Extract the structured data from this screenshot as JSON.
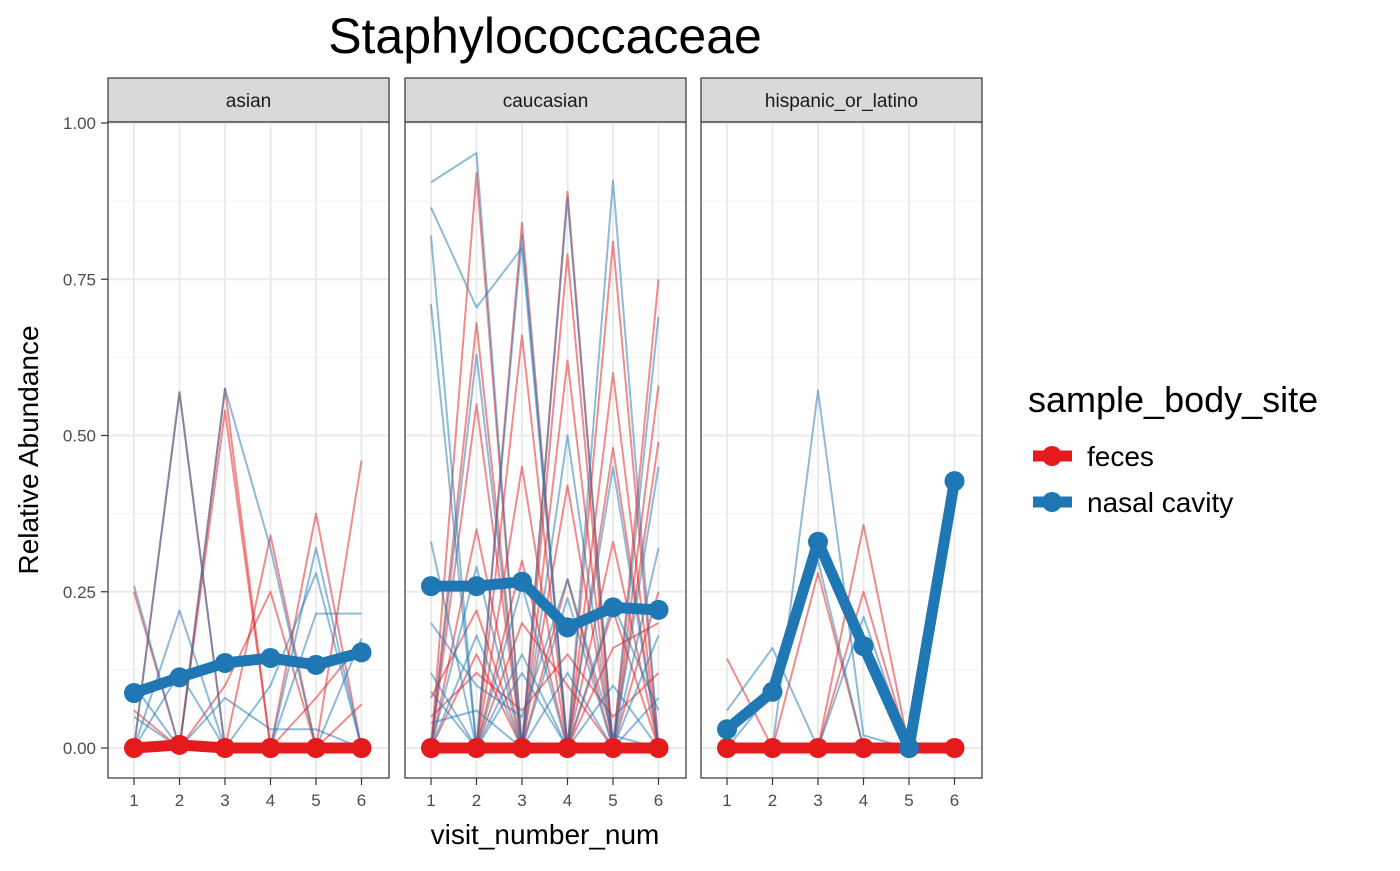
{
  "chart_data": {
    "type": "line",
    "title": "Staphylococcaceae",
    "xlabel": "visit_number_num",
    "ylabel": "Relative Abundance",
    "ylim": [
      0,
      1
    ],
    "y_ticks": [
      "0.00",
      "0.25",
      "0.50",
      "0.75",
      "1.00"
    ],
    "x_ticks": [
      "1",
      "2",
      "3",
      "4",
      "5",
      "6"
    ],
    "grid": true,
    "legend": {
      "title": "sample_body_site",
      "placement": "right",
      "entries": [
        {
          "name": "feces",
          "color": "#e41a1c"
        },
        {
          "name": "nasal cavity",
          "color": "#1f78b4"
        }
      ]
    },
    "facets": [
      {
        "label": "asian",
        "mean_series": [
          {
            "name": "feces",
            "x": [
              1,
              2,
              3,
              4,
              5,
              6
            ],
            "values": [
              0.0,
              0.005,
              0.0,
              0.0,
              0.0,
              0.0
            ]
          },
          {
            "name": "nasal cavity",
            "x": [
              1,
              2,
              3,
              4,
              5,
              6
            ],
            "values": [
              0.088,
              0.113,
              0.136,
              0.144,
              0.133,
              0.153
            ]
          }
        ],
        "individual_trajectories": {
          "feces": [
            [
              0.0,
              0.57,
              0.0,
              0.0,
              0.0,
              0.0
            ],
            [
              0.0,
              0.0,
              0.575,
              0.0,
              0.0,
              0.0
            ],
            [
              0.25,
              0.0,
              0.54,
              0.0,
              0.0,
              0.0
            ],
            [
              0.0,
              0.0,
              0.0,
              0.34,
              0.0,
              0.0
            ],
            [
              0.0,
              0.0,
              0.0,
              0.0,
              0.375,
              0.0
            ],
            [
              0.0,
              0.0,
              0.0,
              0.0,
              0.0,
              0.46
            ],
            [
              0.0,
              0.0,
              0.1,
              0.25,
              0.0,
              0.0
            ],
            [
              0.0,
              0.0,
              0.0,
              0.0,
              0.08,
              0.17
            ],
            [
              0.06,
              0.0,
              0.0,
              0.0,
              0.0,
              0.07
            ]
          ],
          "nasal cavity": [
            [
              0.26,
              0.0,
              0.0,
              0.0,
              0.0,
              0.0
            ],
            [
              0.0,
              0.568,
              0.0,
              0.0,
              0.0,
              0.0
            ],
            [
              0.0,
              0.22,
              0.0,
              0.0,
              0.0,
              0.0
            ],
            [
              0.0,
              0.0,
              0.575,
              0.32,
              0.0,
              0.0
            ],
            [
              0.0,
              0.0,
              0.0,
              0.0,
              0.32,
              0.0
            ],
            [
              0.0,
              0.0,
              0.0,
              0.0,
              0.215,
              0.215
            ],
            [
              0.1,
              0.0,
              0.08,
              0.03,
              0.03,
              0.0
            ],
            [
              0.0,
              0.12,
              0.0,
              0.1,
              0.28,
              0.0
            ],
            [
              0.05,
              0.0,
              0.0,
              0.0,
              0.0,
              0.175
            ]
          ]
        }
      },
      {
        "label": "caucasian",
        "mean_series": [
          {
            "name": "feces",
            "x": [
              1,
              2,
              3,
              4,
              5,
              6
            ],
            "values": [
              0.0,
              0.0,
              0.0,
              0.0,
              0.0,
              0.0
            ]
          },
          {
            "name": "nasal cavity",
            "x": [
              1,
              2,
              3,
              4,
              5,
              6
            ],
            "values": [
              0.259,
              0.259,
              0.266,
              0.193,
              0.225,
              0.221
            ]
          }
        ],
        "individual_trajectories": {
          "feces": [
            [
              0.0,
              0.92,
              0.0,
              0.0,
              0.0,
              0.0
            ],
            [
              0.0,
              0.0,
              0.84,
              0.0,
              0.0,
              0.0
            ],
            [
              0.0,
              0.0,
              0.0,
              0.89,
              0.0,
              0.0
            ],
            [
              0.0,
              0.0,
              0.0,
              0.0,
              0.81,
              0.0
            ],
            [
              0.0,
              0.0,
              0.0,
              0.0,
              0.0,
              0.75
            ],
            [
              0.0,
              0.68,
              0.0,
              0.0,
              0.0,
              0.0
            ],
            [
              0.0,
              0.0,
              0.66,
              0.0,
              0.0,
              0.0
            ],
            [
              0.0,
              0.0,
              0.0,
              0.79,
              0.0,
              0.0
            ],
            [
              0.0,
              0.0,
              0.0,
              0.0,
              0.6,
              0.0
            ],
            [
              0.0,
              0.0,
              0.0,
              0.0,
              0.0,
              0.58
            ],
            [
              0.0,
              0.55,
              0.0,
              0.0,
              0.0,
              0.0
            ],
            [
              0.0,
              0.0,
              0.45,
              0.0,
              0.0,
              0.0
            ],
            [
              0.0,
              0.0,
              0.0,
              0.62,
              0.0,
              0.0
            ],
            [
              0.0,
              0.0,
              0.0,
              0.0,
              0.48,
              0.0
            ],
            [
              0.0,
              0.0,
              0.0,
              0.0,
              0.0,
              0.49
            ],
            [
              0.0,
              0.35,
              0.0,
              0.0,
              0.0,
              0.0
            ],
            [
              0.0,
              0.0,
              0.3,
              0.0,
              0.0,
              0.0
            ],
            [
              0.0,
              0.0,
              0.0,
              0.42,
              0.0,
              0.0
            ],
            [
              0.0,
              0.0,
              0.0,
              0.0,
              0.33,
              0.0
            ],
            [
              0.0,
              0.0,
              0.0,
              0.0,
              0.0,
              0.25
            ],
            [
              0.08,
              0.22,
              0.0,
              0.0,
              0.0,
              0.0
            ],
            [
              0.0,
              0.0,
              0.2,
              0.1,
              0.0,
              0.0
            ],
            [
              0.0,
              0.0,
              0.0,
              0.0,
              0.16,
              0.2
            ],
            [
              0.05,
              0.12,
              0.06,
              0.15,
              0.05,
              0.12
            ],
            [
              0.0,
              0.0,
              0.0,
              0.27,
              0.0,
              0.0
            ],
            [
              0.0,
              0.15,
              0.0,
              0.0,
              0.22,
              0.0
            ]
          ],
          "nasal cavity": [
            [
              0.905,
              0.952,
              0.0,
              0.0,
              0.0,
              0.0
            ],
            [
              0.865,
              0.705,
              0.8,
              0.0,
              0.0,
              0.0
            ],
            [
              0.82,
              0.0,
              0.0,
              0.0,
              0.0,
              0.0
            ],
            [
              0.71,
              0.0,
              0.0,
              0.0,
              0.0,
              0.0
            ],
            [
              0.0,
              0.0,
              0.82,
              0.0,
              0.0,
              0.0
            ],
            [
              0.0,
              0.0,
              0.0,
              0.88,
              0.0,
              0.0
            ],
            [
              0.0,
              0.0,
              0.0,
              0.0,
              0.908,
              0.0
            ],
            [
              0.0,
              0.0,
              0.0,
              0.0,
              0.0,
              0.69
            ],
            [
              0.33,
              0.0,
              0.0,
              0.0,
              0.0,
              0.0
            ],
            [
              0.0,
              0.63,
              0.0,
              0.0,
              0.0,
              0.0
            ],
            [
              0.0,
              0.0,
              0.0,
              0.5,
              0.0,
              0.0
            ],
            [
              0.0,
              0.0,
              0.0,
              0.0,
              0.45,
              0.0
            ],
            [
              0.2,
              0.1,
              0.05,
              0.27,
              0.02,
              0.0
            ],
            [
              0.0,
              0.0,
              0.0,
              0.0,
              0.0,
              0.45
            ],
            [
              0.12,
              0.0,
              0.15,
              0.0,
              0.1,
              0.0
            ],
            [
              0.0,
              0.18,
              0.0,
              0.12,
              0.0,
              0.08
            ],
            [
              0.0,
              0.0,
              0.26,
              0.0,
              0.0,
              0.0
            ],
            [
              0.04,
              0.06,
              0.0,
              0.0,
              0.23,
              0.06
            ],
            [
              0.0,
              0.0,
              0.12,
              0.0,
              0.0,
              0.32
            ],
            [
              0.0,
              0.29,
              0.0,
              0.0,
              0.0,
              0.0
            ],
            [
              0.0,
              0.0,
              0.0,
              0.24,
              0.0,
              0.0
            ],
            [
              0.09,
              0.0,
              0.0,
              0.0,
              0.0,
              0.18
            ]
          ]
        }
      },
      {
        "label": "hispanic_or_latino",
        "mean_series": [
          {
            "name": "feces",
            "x": [
              1,
              2,
              3,
              4,
              5,
              6
            ],
            "values": [
              0.0,
              0.0,
              0.0,
              0.0,
              0.0,
              0.0
            ]
          },
          {
            "name": "nasal cavity",
            "x": [
              1,
              2,
              3,
              4,
              5,
              6
            ],
            "values": [
              0.03,
              0.09,
              0.33,
              0.163,
              0.0,
              0.427
            ]
          }
        ],
        "individual_trajectories": {
          "feces": [
            [
              0.143,
              0.0,
              0.0,
              0.0,
              0.0,
              0.0
            ],
            [
              0.0,
              0.0,
              0.28,
              0.0,
              0.0,
              0.0
            ],
            [
              0.0,
              0.0,
              0.0,
              0.357,
              0.0,
              0.0
            ],
            [
              0.0,
              0.0,
              0.0,
              0.25,
              0.0,
              0.0
            ]
          ],
          "nasal cavity": [
            [
              0.06,
              0.16,
              0.0,
              0.0,
              0.0,
              0.0
            ],
            [
              0.0,
              0.0,
              0.572,
              0.02,
              0.0,
              0.0
            ],
            [
              0.0,
              0.09,
              0.3,
              0.0,
              0.0,
              0.0
            ],
            [
              0.0,
              0.0,
              0.0,
              0.21,
              0.0,
              0.0
            ]
          ]
        }
      }
    ]
  }
}
